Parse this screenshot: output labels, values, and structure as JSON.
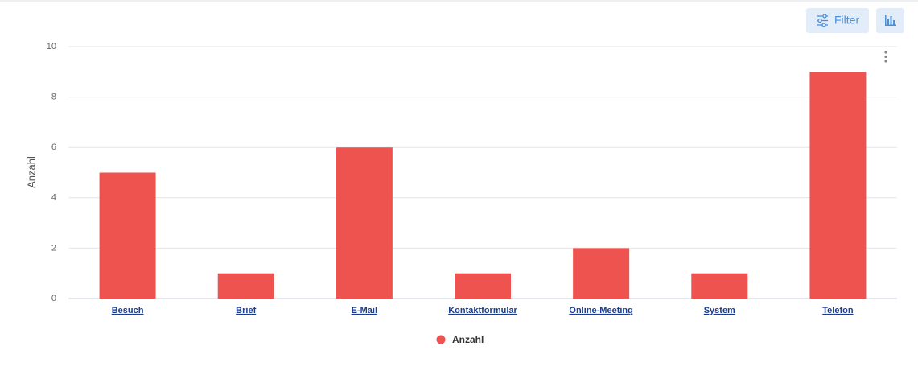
{
  "toolbar": {
    "filter": "Filter"
  },
  "chart_data": {
    "type": "bar",
    "ylabel": "Anzahl",
    "categories": [
      "Besuch",
      "Brief",
      "E-Mail",
      "Kontaktformular",
      "Online-Meeting",
      "System",
      "Telefon"
    ],
    "series": [
      {
        "name": "Anzahl",
        "color": "#ef5350",
        "values": [
          5,
          1,
          6,
          1,
          2,
          1,
          9
        ]
      }
    ],
    "ylim": [
      0,
      10
    ],
    "yticks": [
      0,
      2,
      4,
      6,
      8,
      10
    ],
    "grid": true,
    "legend": "bottom"
  }
}
